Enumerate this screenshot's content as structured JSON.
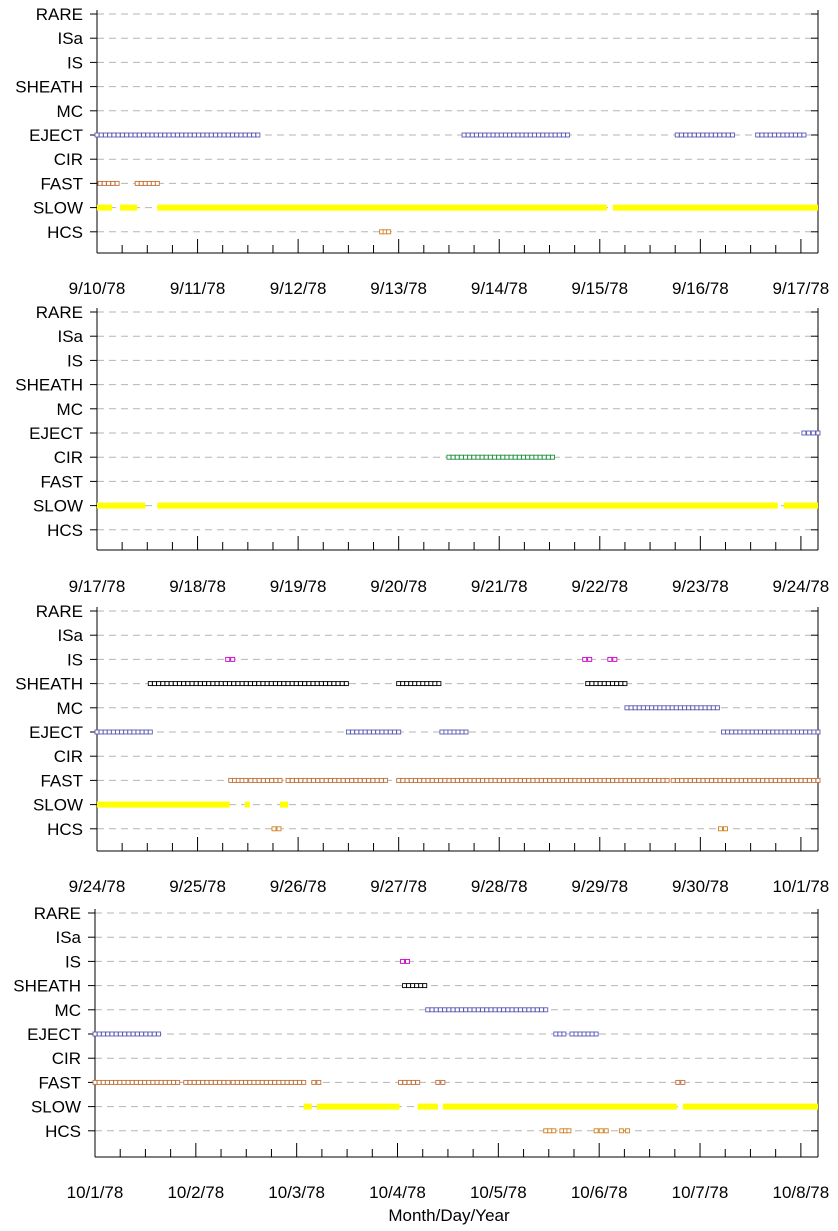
{
  "colors": {
    "grid": "#b5b5b5",
    "EJECT": "#5a5ab4",
    "FAST": "#c07038",
    "SLOW": "#ffff00",
    "HCS": "#d08020",
    "CIR": "#1f8f3f",
    "SHEATH": "#000000",
    "MC": "#5a5ab4",
    "IS": "#cc00cc"
  },
  "chart_data": {
    "type": "timeline",
    "title": "",
    "xlabel": "Month/Day/Year",
    "ylabel": "",
    "categories": [
      "RARE",
      "ISa",
      "IS",
      "SHEATH",
      "MC",
      "EJECT",
      "CIR",
      "FAST",
      "SLOW",
      "HCS"
    ],
    "panels": [
      {
        "start": "1978-09-10",
        "x_tick_labels": [
          "9/10/78",
          "9/11/78",
          "9/12/78",
          "9/13/78",
          "9/14/78",
          "9/15/78",
          "9/16/78",
          "9/17/78"
        ],
        "intervals": [
          {
            "cat": "EJECT",
            "start": 0.0,
            "end": 1.6
          },
          {
            "cat": "EJECT",
            "start": 3.65,
            "end": 4.68
          },
          {
            "cat": "EJECT",
            "start": 5.77,
            "end": 6.32
          },
          {
            "cat": "EJECT",
            "start": 6.57,
            "end": 7.03
          },
          {
            "cat": "FAST",
            "start": 0.03,
            "end": 0.2
          },
          {
            "cat": "FAST",
            "start": 0.4,
            "end": 0.6
          },
          {
            "cat": "SLOW",
            "start": 0.0,
            "end": 0.15
          },
          {
            "cat": "SLOW",
            "start": 0.23,
            "end": 0.4
          },
          {
            "cat": "SLOW",
            "start": 0.6,
            "end": 5.07
          },
          {
            "cat": "SLOW",
            "start": 5.13,
            "end": 7.17
          },
          {
            "cat": "HCS",
            "start": 2.83,
            "end": 2.9
          }
        ]
      },
      {
        "start": "1978-09-17",
        "x_tick_labels": [
          "9/17/78",
          "9/18/78",
          "9/19/78",
          "9/20/78",
          "9/21/78",
          "9/22/78",
          "9/23/78",
          "9/24/78"
        ],
        "intervals": [
          {
            "cat": "EJECT",
            "start": 7.03,
            "end": 7.17
          },
          {
            "cat": "CIR",
            "start": 3.5,
            "end": 4.53
          },
          {
            "cat": "SLOW",
            "start": 0.0,
            "end": 0.48
          },
          {
            "cat": "SLOW",
            "start": 0.6,
            "end": 6.77
          },
          {
            "cat": "SLOW",
            "start": 6.83,
            "end": 7.17
          }
        ]
      },
      {
        "start": "1978-09-24",
        "x_tick_labels": [
          "9/24/78",
          "9/25/78",
          "9/26/78",
          "9/27/78",
          "9/28/78",
          "9/29/78",
          "9/30/78",
          "10/1/78"
        ],
        "intervals": [
          {
            "cat": "IS",
            "start": 1.3,
            "end": 1.3
          },
          {
            "cat": "IS",
            "start": 4.85,
            "end": 4.85
          },
          {
            "cat": "IS",
            "start": 5.1,
            "end": 5.1
          },
          {
            "cat": "SHEATH",
            "start": 0.53,
            "end": 2.48
          },
          {
            "cat": "SHEATH",
            "start": 3.0,
            "end": 3.4
          },
          {
            "cat": "SHEATH",
            "start": 4.88,
            "end": 5.25
          },
          {
            "cat": "MC",
            "start": 5.27,
            "end": 6.17
          },
          {
            "cat": "EJECT",
            "start": 0.0,
            "end": 0.53
          },
          {
            "cat": "EJECT",
            "start": 2.5,
            "end": 3.0
          },
          {
            "cat": "EJECT",
            "start": 3.43,
            "end": 3.67
          },
          {
            "cat": "EJECT",
            "start": 6.23,
            "end": 7.17
          },
          {
            "cat": "FAST",
            "start": 1.33,
            "end": 1.48
          },
          {
            "cat": "FAST",
            "start": 1.53,
            "end": 1.82
          },
          {
            "cat": "FAST",
            "start": 1.9,
            "end": 2.87
          },
          {
            "cat": "FAST",
            "start": 3.0,
            "end": 5.67
          },
          {
            "cat": "FAST",
            "start": 5.73,
            "end": 7.17
          },
          {
            "cat": "SLOW",
            "start": 0.0,
            "end": 1.32
          },
          {
            "cat": "SLOW",
            "start": 1.47,
            "end": 1.52
          },
          {
            "cat": "SLOW",
            "start": 1.82,
            "end": 1.9
          },
          {
            "cat": "HCS",
            "start": 1.76,
            "end": 1.76
          },
          {
            "cat": "HCS",
            "start": 6.2,
            "end": 6.2
          }
        ]
      },
      {
        "start": "1978-10-01",
        "x_tick_labels": [
          "10/1/78",
          "10/2/78",
          "10/3/78",
          "10/4/78",
          "10/5/78",
          "10/6/78",
          "10/7/78",
          "10/8/78"
        ],
        "intervals": [
          {
            "cat": "IS",
            "start": 3.05,
            "end": 3.05
          },
          {
            "cat": "SHEATH",
            "start": 3.07,
            "end": 3.27
          },
          {
            "cat": "MC",
            "start": 3.3,
            "end": 4.47
          },
          {
            "cat": "EJECT",
            "start": 0.0,
            "end": 0.63
          },
          {
            "cat": "EJECT",
            "start": 4.57,
            "end": 4.65
          },
          {
            "cat": "EJECT",
            "start": 4.73,
            "end": 4.97
          },
          {
            "cat": "FAST",
            "start": 0.0,
            "end": 0.82
          },
          {
            "cat": "FAST",
            "start": 0.9,
            "end": 1.32
          },
          {
            "cat": "FAST",
            "start": 1.37,
            "end": 2.07
          },
          {
            "cat": "FAST",
            "start": 2.17,
            "end": 2.2
          },
          {
            "cat": "FAST",
            "start": 3.03,
            "end": 3.2
          },
          {
            "cat": "FAST",
            "start": 3.4,
            "end": 3.45
          },
          {
            "cat": "FAST",
            "start": 5.78,
            "end": 5.82
          },
          {
            "cat": "SLOW",
            "start": 2.07,
            "end": 2.15
          },
          {
            "cat": "SLOW",
            "start": 2.2,
            "end": 3.02
          },
          {
            "cat": "SLOW",
            "start": 3.2,
            "end": 3.4
          },
          {
            "cat": "SLOW",
            "start": 3.45,
            "end": 5.77
          },
          {
            "cat": "SLOW",
            "start": 5.83,
            "end": 7.17
          },
          {
            "cat": "HCS",
            "start": 4.47,
            "end": 4.55
          },
          {
            "cat": "HCS",
            "start": 4.63,
            "end": 4.7
          },
          {
            "cat": "HCS",
            "start": 4.97,
            "end": 5.07
          },
          {
            "cat": "HCS",
            "start": 5.22,
            "end": 5.28
          }
        ]
      }
    ]
  }
}
